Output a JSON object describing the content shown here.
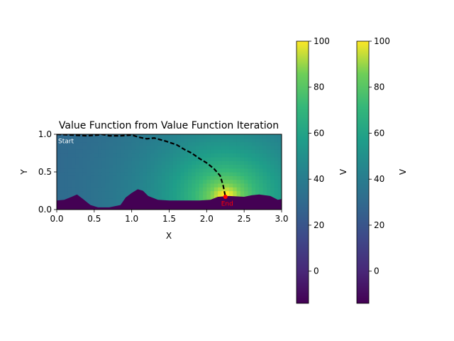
{
  "chart_data": [
    {
      "type": "heatmap",
      "title": "Value Function from Value Function Iteration",
      "xlabel": "X",
      "ylabel": "Y",
      "xlim": [
        0.0,
        3.0
      ],
      "ylim": [
        0.0,
        1.0
      ],
      "x_ticks": [
        "0.0",
        "0.5",
        "1.0",
        "1.5",
        "2.0",
        "2.5",
        "3.0"
      ],
      "y_ticks": [
        "0.0",
        "0.5",
        "1.0"
      ],
      "grid": false,
      "colormap": "viridis",
      "value_range": [
        -14,
        100
      ],
      "goal": {
        "x": 2.25,
        "y": 0.17
      },
      "terrain": {
        "x": [
          0.0,
          0.1,
          0.2,
          0.27,
          0.35,
          0.45,
          0.55,
          0.7,
          0.85,
          0.92,
          1.0,
          1.08,
          1.15,
          1.22,
          1.35,
          1.5,
          1.7,
          1.9,
          2.05,
          2.15,
          2.3,
          2.5,
          2.6,
          2.7,
          2.85,
          2.95,
          3.0
        ],
        "y": [
          0.12,
          0.13,
          0.17,
          0.2,
          0.14,
          0.06,
          0.03,
          0.03,
          0.06,
          0.16,
          0.22,
          0.27,
          0.25,
          0.18,
          0.13,
          0.12,
          0.12,
          0.12,
          0.13,
          0.17,
          0.18,
          0.17,
          0.19,
          0.2,
          0.18,
          0.13,
          0.14
        ]
      },
      "path": {
        "x": [
          0.0,
          0.2,
          0.4,
          0.55,
          0.6,
          0.7,
          0.85,
          1.0,
          1.1,
          1.2,
          1.3,
          1.45,
          1.6,
          1.7,
          1.8,
          1.9,
          2.0,
          2.1,
          2.18,
          2.22,
          2.25
        ],
        "y": [
          1.0,
          0.99,
          0.98,
          0.99,
          1.0,
          0.98,
          0.98,
          0.99,
          0.96,
          0.94,
          0.95,
          0.91,
          0.86,
          0.8,
          0.75,
          0.68,
          0.62,
          0.54,
          0.45,
          0.32,
          0.17
        ]
      },
      "annotations": [
        {
          "text": "Start",
          "x": 0.01,
          "y": 0.9,
          "color": "#ffffff"
        },
        {
          "text": "End",
          "x": 2.25,
          "y": 0.1,
          "color": "#ff0000"
        }
      ],
      "path_color": "#000000",
      "terrain_color": "#440154",
      "end_marker_color": "#ff0000"
    },
    {
      "type": "colorbar",
      "label": "V",
      "range": [
        -14,
        100
      ],
      "ticks": [
        "0",
        "20",
        "40",
        "60",
        "80",
        "100"
      ]
    },
    {
      "type": "colorbar",
      "label": "V",
      "range": [
        -14,
        100
      ],
      "ticks": [
        "0",
        "20",
        "40",
        "60",
        "80",
        "100"
      ]
    }
  ]
}
